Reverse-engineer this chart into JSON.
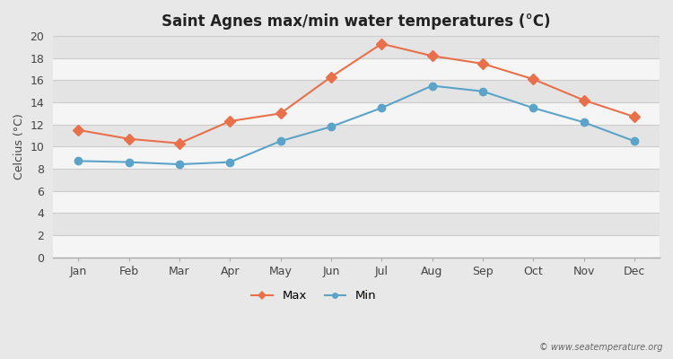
{
  "months": [
    "Jan",
    "Feb",
    "Mar",
    "Apr",
    "May",
    "Jun",
    "Jul",
    "Aug",
    "Sep",
    "Oct",
    "Nov",
    "Dec"
  ],
  "max_temps": [
    11.5,
    10.7,
    10.3,
    12.3,
    13.0,
    16.3,
    19.3,
    18.2,
    17.5,
    16.1,
    14.2,
    12.7
  ],
  "min_temps": [
    8.7,
    8.6,
    8.4,
    8.6,
    10.5,
    11.8,
    13.5,
    15.5,
    15.0,
    13.5,
    12.2,
    10.5
  ],
  "max_color": "#e8704a",
  "min_color": "#5ba3c9",
  "title": "Saint Agnes max/min water temperatures (°C)",
  "ylabel": "Celcius (°C)",
  "ylim": [
    0,
    20
  ],
  "yticks": [
    0,
    2,
    4,
    6,
    8,
    10,
    12,
    14,
    16,
    18,
    20
  ],
  "bg_color": "#e8e8e8",
  "plot_bg": "#e8e8e8",
  "band_color_light": "#f0f0f0",
  "band_color_dark": "#e0e0e0",
  "watermark": "© www.seatemperature.org"
}
